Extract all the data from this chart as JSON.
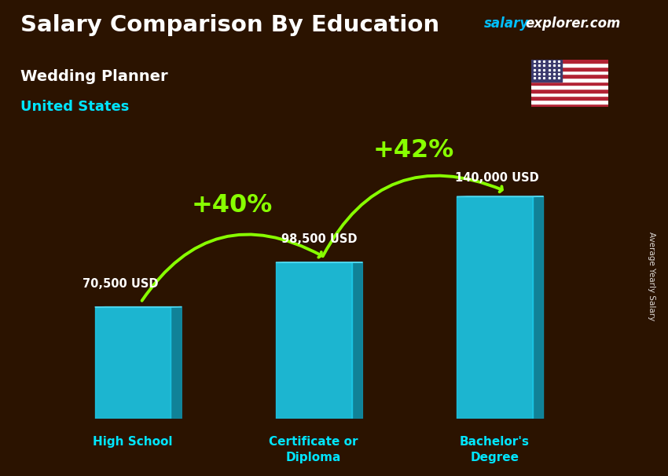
{
  "title": "Salary Comparison By Education",
  "subtitle": "Wedding Planner",
  "location": "United States",
  "categories": [
    "High School",
    "Certificate or\nDiploma",
    "Bachelor's\nDegree"
  ],
  "values": [
    70500,
    98500,
    140000
  ],
  "value_labels": [
    "70,500 USD",
    "98,500 USD",
    "140,000 USD"
  ],
  "pct_changes": [
    "+40%",
    "+42%"
  ],
  "bar_color": "#1BC8E8",
  "bar_color_dark": "#0E8FAA",
  "bar_color_top": "#50D8F0",
  "bar_alpha": 0.9,
  "arrow_color": "#88FF00",
  "title_color": "#FFFFFF",
  "subtitle_color": "#FFFFFF",
  "location_color": "#00E5FF",
  "label_color": "#FFFFFF",
  "category_color": "#00E5FF",
  "pct_color": "#AAFF00",
  "site_salary_color": "#00BFFF",
  "site_explorer_color": "#FFFFFF",
  "background_color": "#2B1300",
  "ylabel": "Average Yearly Salary",
  "ylabel_color": "#FFFFFF",
  "ylim": [
    0,
    180000
  ],
  "bar_width": 0.42,
  "positions": [
    0,
    1,
    2
  ]
}
